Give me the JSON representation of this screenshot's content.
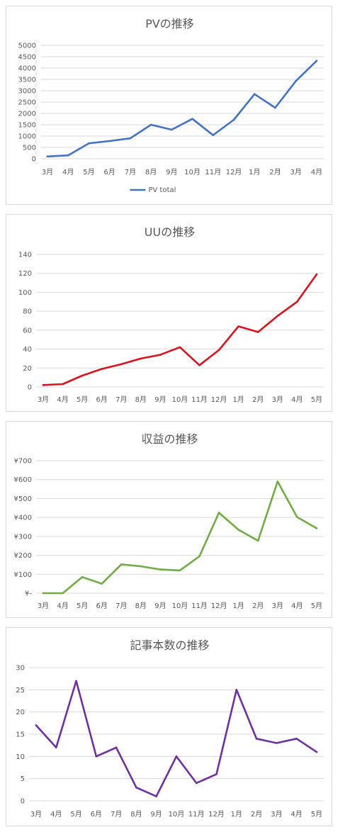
{
  "chart_data": [
    {
      "type": "line",
      "title": "PVの推移",
      "categories": [
        "3月",
        "4月",
        "5月",
        "6月",
        "7月",
        "8月",
        "9月",
        "10月",
        "11月",
        "12月",
        "1月",
        "2月",
        "3月",
        "4月"
      ],
      "series": [
        {
          "name": "PV total",
          "values": [
            100,
            150,
            680,
            780,
            900,
            1500,
            1280,
            1760,
            1040,
            1720,
            2850,
            2250,
            3430,
            4320
          ],
          "color": "#4472c4"
        }
      ],
      "yticks": [
        "0",
        "500",
        "1000",
        "1500",
        "2000",
        "2500",
        "3000",
        "3500",
        "4000",
        "4500",
        "5000"
      ],
      "ylim": [
        0,
        5000
      ],
      "grid": true,
      "legend": "bottom"
    },
    {
      "type": "line",
      "title": "UUの推移",
      "categories": [
        "3月",
        "4月",
        "5月",
        "6月",
        "7月",
        "8月",
        "9月",
        "10月",
        "11月",
        "12月",
        "1月",
        "2月",
        "3月",
        "4月",
        "5月"
      ],
      "series": [
        {
          "values": [
            2,
            3,
            12,
            19,
            24,
            30,
            34,
            42,
            23,
            39,
            64,
            58,
            75,
            90,
            119
          ],
          "color": "#d9141e"
        }
      ],
      "yticks": [
        "0",
        "20",
        "40",
        "60",
        "80",
        "100",
        "120",
        "140"
      ],
      "ylim": [
        0,
        140
      ],
      "grid": true
    },
    {
      "type": "line",
      "title": "収益の推移",
      "categories": [
        "3月",
        "4月",
        "5月",
        "6月",
        "7月",
        "8月",
        "9月",
        "10月",
        "11月",
        "12月",
        "1月",
        "2月",
        "3月",
        "4月",
        "5月"
      ],
      "series": [
        {
          "values": [
            0,
            0,
            85,
            50,
            152,
            142,
            125,
            120,
            195,
            425,
            335,
            277,
            590,
            402,
            343
          ],
          "color": "#70ad47"
        }
      ],
      "yticks": [
        "¥-",
        "¥100",
        "¥200",
        "¥300",
        "¥400",
        "¥500",
        "¥600",
        "¥700"
      ],
      "ylim": [
        0,
        700
      ],
      "grid": true
    },
    {
      "type": "line",
      "title": "記事本数の推移",
      "categories": [
        "3月",
        "4月",
        "5月",
        "6月",
        "7月",
        "8月",
        "9月",
        "10月",
        "11月",
        "12月",
        "1月",
        "2月",
        "3月",
        "4月",
        "5月"
      ],
      "series": [
        {
          "values": [
            17,
            12,
            27,
            10,
            12,
            3,
            1,
            10,
            4,
            6,
            25,
            14,
            13,
            14,
            11
          ],
          "color": "#7030a0"
        }
      ],
      "yticks": [
        "0",
        "5",
        "10",
        "15",
        "20",
        "25",
        "30"
      ],
      "ylim": [
        0,
        30
      ],
      "grid": true
    }
  ]
}
